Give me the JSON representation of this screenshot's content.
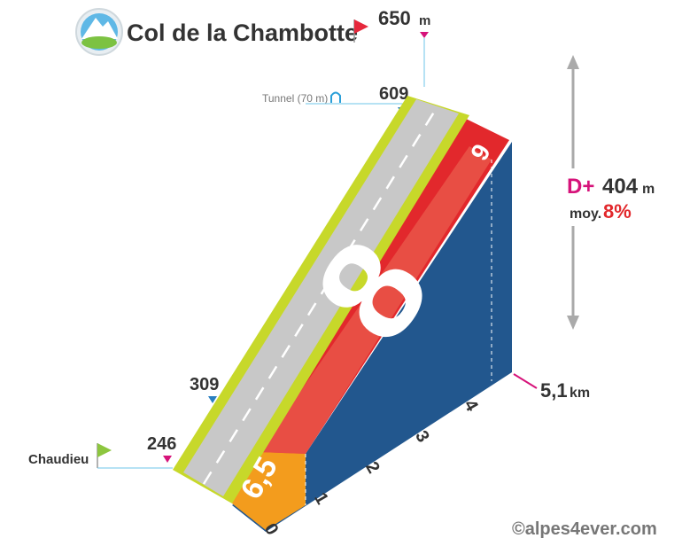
{
  "header": {
    "title": "Col de la Chambotte",
    "summit_altitude": "650",
    "summit_unit": "m"
  },
  "tunnel": {
    "label": "Tunnel (70 m)",
    "altitude": "609"
  },
  "waypoint": {
    "altitude": "309"
  },
  "start": {
    "label": "Chaudieu",
    "altitude": "246"
  },
  "gradients": [
    "6,5",
    "8",
    "9"
  ],
  "distance": {
    "ticks": [
      "0",
      "1",
      "2",
      "3",
      "4"
    ],
    "total": "5,1",
    "unit": "km"
  },
  "summary": {
    "gain_label": "D+",
    "gain": "404",
    "gain_unit": "m",
    "average_label": "moy.",
    "average": "8%"
  },
  "credit": "©alpes4ever.com"
}
